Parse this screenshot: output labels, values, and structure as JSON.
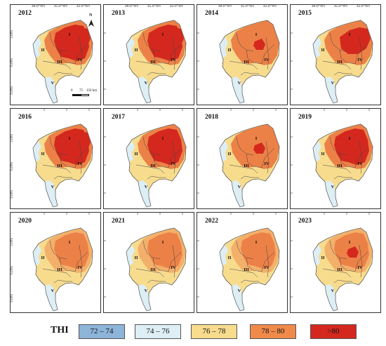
{
  "panels": [
    {
      "year": "2012",
      "levels": [
        2,
        3,
        4,
        4,
        3
      ],
      "core": 3
    },
    {
      "year": "2013",
      "levels": [
        2,
        3,
        4,
        4,
        3
      ],
      "core": 3
    },
    {
      "year": "2014",
      "levels": [
        2,
        3,
        3,
        3,
        2
      ],
      "core": 1
    },
    {
      "year": "2015",
      "levels": [
        2,
        3,
        3,
        3,
        2
      ],
      "core": 3
    },
    {
      "year": "2016",
      "levels": [
        3,
        3,
        4,
        4,
        3
      ],
      "core": 3
    },
    {
      "year": "2017",
      "levels": [
        3,
        3,
        4,
        4,
        2
      ],
      "core": 2
    },
    {
      "year": "2018",
      "levels": [
        2,
        3,
        3,
        3,
        2
      ],
      "core": 1
    },
    {
      "year": "2019",
      "levels": [
        3,
        3,
        4,
        4,
        3
      ],
      "core": 2
    },
    {
      "year": "2020",
      "levels": [
        1,
        2,
        3,
        3,
        2
      ],
      "core": 0
    },
    {
      "year": "2021",
      "levels": [
        1,
        2,
        3,
        3,
        2
      ],
      "core": 0
    },
    {
      "year": "2022",
      "levels": [
        1,
        2,
        3,
        3,
        2
      ],
      "core": 0
    },
    {
      "year": "2023",
      "levels": [
        2,
        2,
        3,
        3,
        2
      ],
      "core": 1
    }
  ],
  "lon_labels": [
    "48.0°W",
    "45.0°W",
    "42.0°W"
  ],
  "lat_labels": [
    "3.0°S",
    "6.0°S",
    "9.0°S"
  ],
  "region_labels": [
    "I",
    "II",
    "III",
    "IV",
    "V"
  ],
  "north_label": "N",
  "scale_labels": [
    "0",
    "75",
    "150 km"
  ],
  "legend": {
    "title": "THI",
    "items": [
      {
        "label": "72 – 74",
        "color": "#8db4d9"
      },
      {
        "label": "74 – 76",
        "color": "#ddeef5"
      },
      {
        "label": "76 – 78",
        "color": "#f7dc8e"
      },
      {
        "label": "78 – 80",
        "color": "#f08a4b"
      },
      {
        "label": ">80",
        "color": "#d4281e"
      }
    ]
  },
  "colors": {
    "pale": "#ddeef5",
    "yellow": "#f7dc8e",
    "lightorange": "#f3b06b",
    "orange": "#ec8147",
    "red": "#d4281e"
  }
}
